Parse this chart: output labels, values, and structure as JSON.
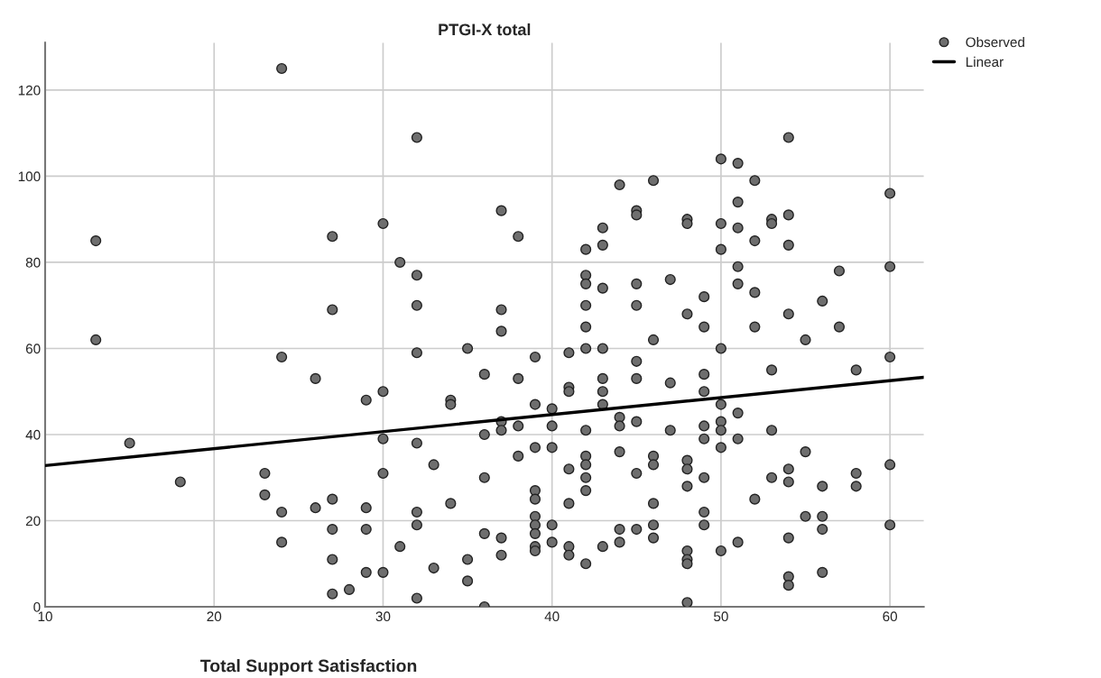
{
  "chart_data": {
    "type": "scatter",
    "title": "PTGI-X total",
    "xlabel": "Total Support Satisfaction",
    "xlim": [
      10,
      62
    ],
    "ylim": [
      0,
      131
    ],
    "xticks": [
      10,
      20,
      30,
      40,
      50,
      60
    ],
    "yticks": [
      0,
      20,
      40,
      60,
      80,
      100,
      120
    ],
    "grid": true,
    "legend": "top right",
    "series": [
      {
        "name": "Observed",
        "marker": "circle",
        "color": "#6e6e6e",
        "x": [
          13,
          13,
          15,
          18,
          23,
          23,
          24,
          24,
          24,
          24,
          26,
          26,
          27,
          27,
          27,
          27,
          27,
          27,
          28,
          29,
          29,
          29,
          29,
          30,
          30,
          30,
          30,
          30,
          31,
          31,
          32,
          32,
          32,
          32,
          32,
          32,
          32,
          32,
          33,
          33,
          34,
          34,
          34,
          35,
          35,
          35,
          36,
          36,
          36,
          36,
          36,
          37,
          37,
          37,
          37,
          37,
          37,
          37,
          38,
          38,
          38,
          38,
          39,
          39,
          39,
          39,
          39,
          39,
          39,
          39,
          39,
          39,
          40,
          40,
          40,
          40,
          40,
          41,
          41,
          41,
          41,
          41,
          41,
          41,
          42,
          42,
          42,
          42,
          42,
          42,
          42,
          42,
          42,
          42,
          42,
          42,
          43,
          43,
          43,
          43,
          43,
          43,
          43,
          43,
          44,
          44,
          44,
          44,
          44,
          44,
          45,
          45,
          45,
          45,
          45,
          45,
          45,
          45,
          45,
          46,
          46,
          46,
          46,
          46,
          46,
          46,
          47,
          47,
          47,
          48,
          48,
          48,
          48,
          48,
          48,
          48,
          48,
          48,
          48,
          49,
          49,
          49,
          49,
          49,
          49,
          49,
          49,
          49,
          50,
          50,
          50,
          50,
          50,
          50,
          50,
          50,
          50,
          51,
          51,
          51,
          51,
          51,
          51,
          51,
          51,
          52,
          52,
          52,
          52,
          52,
          53,
          53,
          53,
          53,
          53,
          54,
          54,
          54,
          54,
          54,
          54,
          54,
          54,
          54,
          55,
          55,
          55,
          56,
          56,
          56,
          56,
          56,
          57,
          57,
          58,
          58,
          58,
          60,
          60,
          60,
          60,
          60
        ],
        "values": [
          85,
          62,
          38,
          29,
          31,
          26,
          125,
          58,
          22,
          15,
          53,
          23,
          86,
          69,
          25,
          18,
          11,
          3,
          4,
          48,
          23,
          18,
          8,
          89,
          50,
          39,
          31,
          8,
          80,
          14,
          109,
          77,
          70,
          59,
          38,
          22,
          19,
          2,
          33,
          9,
          48,
          47,
          24,
          60,
          11,
          6,
          54,
          40,
          30,
          17,
          0,
          92,
          69,
          64,
          43,
          41,
          16,
          12,
          86,
          53,
          42,
          35,
          58,
          47,
          37,
          27,
          25,
          21,
          19,
          17,
          14,
          13,
          46,
          42,
          37,
          19,
          15,
          59,
          51,
          50,
          32,
          24,
          14,
          12,
          83,
          77,
          75,
          70,
          65,
          60,
          41,
          35,
          33,
          30,
          27,
          10,
          88,
          84,
          74,
          60,
          53,
          50,
          47,
          14,
          98,
          44,
          42,
          36,
          18,
          15,
          92,
          91,
          75,
          70,
          57,
          53,
          43,
          31,
          18,
          99,
          62,
          35,
          33,
          24,
          19,
          16,
          76,
          52,
          41,
          90,
          89,
          68,
          34,
          32,
          28,
          13,
          11,
          10,
          1,
          72,
          65,
          54,
          50,
          42,
          39,
          30,
          22,
          19,
          104,
          89,
          83,
          60,
          47,
          43,
          41,
          37,
          13,
          103,
          94,
          88,
          79,
          75,
          45,
          39,
          15,
          99,
          85,
          73,
          65,
          25,
          90,
          89,
          55,
          41,
          30,
          109,
          91,
          84,
          68,
          32,
          29,
          16,
          7,
          5,
          62,
          36,
          21,
          71,
          28,
          21,
          18,
          8,
          78,
          65,
          55,
          31,
          28,
          96,
          79,
          58,
          33,
          19
        ]
      },
      {
        "name": "Linear",
        "type": "line",
        "color": "#000000",
        "x": [
          10,
          62
        ],
        "values": [
          32.8,
          53.3
        ]
      }
    ]
  }
}
